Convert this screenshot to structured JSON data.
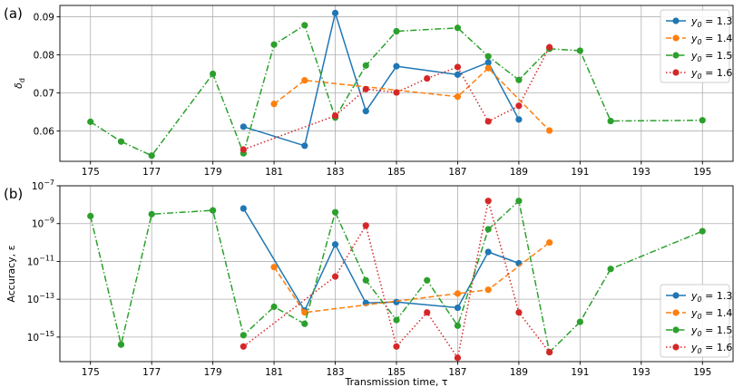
{
  "chart_data": [
    {
      "type": "line",
      "panel_label": "(a)",
      "xlabel": "",
      "ylabel": "δd",
      "xlim": [
        174,
        196
      ],
      "ylim": [
        0.052,
        0.093
      ],
      "xticks": [
        175,
        177,
        179,
        181,
        183,
        185,
        187,
        189,
        191,
        193,
        195
      ],
      "xtick_labels": [
        "175",
        "177",
        "179",
        "181",
        "183",
        "185",
        "187",
        "189",
        "191",
        "193",
        "195"
      ],
      "yticks": [
        0.06,
        0.07,
        0.08,
        0.09
      ],
      "ytick_labels": [
        "0.06",
        "0.07",
        "0.08",
        "0.09"
      ],
      "grid": true,
      "legend_position": "top-right",
      "series": [
        {
          "name": "y0 = 1.3",
          "color": "#1f77b4",
          "linestyle": "solid",
          "x": [
            180,
            182,
            183,
            184,
            185,
            187,
            188,
            189
          ],
          "y": [
            0.0611,
            0.0561,
            0.091,
            0.0652,
            0.077,
            0.0748,
            0.078,
            0.063
          ]
        },
        {
          "name": "y0 = 1.4",
          "color": "#ff7f0e",
          "linestyle": "dashed",
          "x": [
            181,
            182,
            187,
            188,
            190
          ],
          "y": [
            0.0671,
            0.0733,
            0.069,
            0.0765,
            0.0601
          ]
        },
        {
          "name": "y0 = 1.5",
          "color": "#2ca02c",
          "linestyle": "dashdot",
          "x": [
            175,
            176,
            177,
            179,
            180,
            181,
            182,
            183,
            184,
            185,
            187,
            188,
            189,
            190,
            191,
            192,
            195
          ],
          "y": [
            0.0624,
            0.0572,
            0.0535,
            0.075,
            0.0541,
            0.0827,
            0.0878,
            0.0635,
            0.0772,
            0.0862,
            0.0871,
            0.0796,
            0.0734,
            0.0816,
            0.0811,
            0.0626,
            0.0628
          ]
        },
        {
          "name": "y0 = 1.6",
          "color": "#d62728",
          "linestyle": "dotted",
          "x": [
            180,
            183,
            184,
            185,
            186,
            187,
            188,
            189,
            190
          ],
          "y": [
            0.0551,
            0.064,
            0.071,
            0.0701,
            0.0738,
            0.0768,
            0.0625,
            0.0666,
            0.082
          ]
        }
      ]
    },
    {
      "type": "line",
      "panel_label": "(b)",
      "xlabel": "Transmission time, τ",
      "ylabel": "Accuracy, ε",
      "xlim": [
        174,
        196
      ],
      "ylim_log10": [
        -16.3,
        -7.0
      ],
      "yscale": "log",
      "xticks": [
        175,
        177,
        179,
        181,
        183,
        185,
        187,
        189,
        191,
        193,
        195
      ],
      "xtick_labels": [
        "175",
        "177",
        "179",
        "181",
        "183",
        "185",
        "187",
        "189",
        "191",
        "193",
        "195"
      ],
      "yticks_log10": [
        -15,
        -13,
        -11,
        -9,
        -7
      ],
      "ytick_labels": [
        "10−15",
        "10−13",
        "10−11",
        "10−9",
        "10−7"
      ],
      "grid": true,
      "legend_position": "bottom-right",
      "series": [
        {
          "name": "y0 = 1.3",
          "color": "#1f77b4",
          "linestyle": "solid",
          "x": [
            180,
            182,
            183,
            184,
            185,
            187,
            188,
            189
          ],
          "log10_y": [
            -8.2,
            -13.6,
            -10.1,
            -13.2,
            -13.15,
            -13.45,
            -10.5,
            -11.1
          ]
        },
        {
          "name": "y0 = 1.4",
          "color": "#ff7f0e",
          "linestyle": "dashed",
          "x": [
            181,
            182,
            187,
            188,
            190
          ],
          "log10_y": [
            -11.3,
            -13.7,
            -12.7,
            -12.5,
            -10.0
          ]
        },
        {
          "name": "y0 = 1.5",
          "color": "#2ca02c",
          "linestyle": "dashdot",
          "x": [
            175,
            176,
            177,
            179,
            180,
            181,
            182,
            183,
            184,
            185,
            186,
            187,
            188,
            189,
            190,
            191,
            192,
            195
          ],
          "log10_y": [
            -8.6,
            -15.4,
            -8.5,
            -8.3,
            -14.9,
            -13.4,
            -14.3,
            -8.4,
            -12.0,
            -14.1,
            -12.0,
            -14.4,
            -9.3,
            -7.8,
            -15.8,
            -14.2,
            -11.4,
            -9.4
          ]
        },
        {
          "name": "y0 = 1.6",
          "color": "#d62728",
          "linestyle": "dotted",
          "x": [
            180,
            183,
            184,
            185,
            186,
            187,
            188,
            189,
            190
          ],
          "log10_y": [
            -15.5,
            -11.8,
            -9.1,
            -15.5,
            -13.7,
            -16.1,
            -7.8,
            -13.7,
            -15.8
          ]
        }
      ]
    }
  ]
}
